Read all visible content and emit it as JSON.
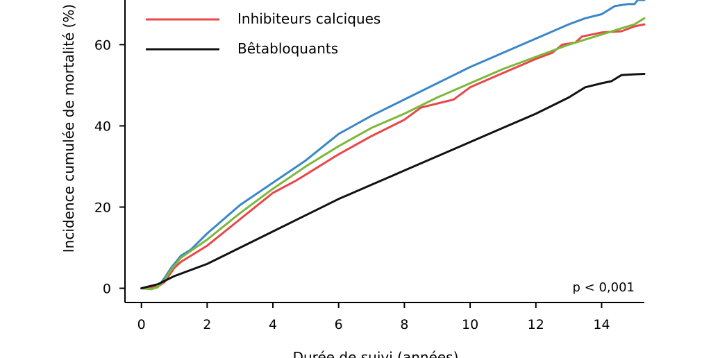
{
  "chart_data": {
    "type": "line",
    "xlabel": "Durée de suivi (années)",
    "ylabel": "Incidence cumulée de mortalité (%)",
    "xlim": [
      -0.5,
      15.3
    ],
    "ylim": [
      -3.5,
      71
    ],
    "xticks": [
      0,
      2,
      4,
      6,
      8,
      10,
      12,
      14
    ],
    "yticks": [
      0,
      20,
      40,
      60
    ],
    "annotation": "p < 0,001",
    "legend_placement": "top-left",
    "series": [
      {
        "name": "",
        "color": "#3a87c8",
        "points": [
          [
            0,
            0
          ],
          [
            0.3,
            -0.2
          ],
          [
            0.5,
            0.3
          ],
          [
            0.7,
            2.5
          ],
          [
            0.9,
            5
          ],
          [
            1.2,
            8
          ],
          [
            1.5,
            9.5
          ],
          [
            2,
            13.5
          ],
          [
            3,
            20.5
          ],
          [
            4,
            26
          ],
          [
            5,
            31.5
          ],
          [
            6,
            38
          ],
          [
            7,
            42.5
          ],
          [
            8,
            46.5
          ],
          [
            9,
            50.5
          ],
          [
            10,
            54.5
          ],
          [
            11,
            58
          ],
          [
            12,
            61.5
          ],
          [
            13,
            65
          ],
          [
            13.5,
            66.5
          ],
          [
            14,
            67.5
          ],
          [
            14.4,
            69.5
          ],
          [
            14.8,
            70
          ],
          [
            15,
            70
          ],
          [
            15.1,
            71
          ],
          [
            15.3,
            71
          ]
        ]
      },
      {
        "name": "Inhibiteurs calciques",
        "color": "#e8464a",
        "points": [
          [
            0,
            0
          ],
          [
            0.3,
            0.2
          ],
          [
            0.5,
            0.4
          ],
          [
            0.7,
            1.5
          ],
          [
            1,
            5
          ],
          [
            1.2,
            6.5
          ],
          [
            2,
            10.5
          ],
          [
            3,
            17
          ],
          [
            4,
            23.5
          ],
          [
            4.7,
            26.5
          ],
          [
            5,
            28
          ],
          [
            6,
            33
          ],
          [
            7,
            37.5
          ],
          [
            8,
            41.5
          ],
          [
            8.5,
            44.5
          ],
          [
            9.5,
            46.5
          ],
          [
            10,
            49.5
          ],
          [
            11,
            53
          ],
          [
            12,
            56.5
          ],
          [
            12.5,
            58
          ],
          [
            12.8,
            60
          ],
          [
            13.2,
            60.5
          ],
          [
            13.4,
            62
          ],
          [
            14,
            63
          ],
          [
            14.6,
            63.3
          ],
          [
            15,
            64.5
          ],
          [
            15.3,
            65
          ]
        ]
      },
      {
        "name": "",
        "color": "#7cb83a",
        "points": [
          [
            0,
            0
          ],
          [
            0.3,
            -0.2
          ],
          [
            0.5,
            0.3
          ],
          [
            0.7,
            2
          ],
          [
            0.9,
            4.5
          ],
          [
            1.2,
            7.5
          ],
          [
            2,
            12
          ],
          [
            3,
            18.5
          ],
          [
            4,
            24.5
          ],
          [
            5,
            30
          ],
          [
            6,
            35
          ],
          [
            7,
            39.5
          ],
          [
            8,
            43
          ],
          [
            9,
            47
          ],
          [
            10,
            50.5
          ],
          [
            11,
            54
          ],
          [
            12,
            57
          ],
          [
            13,
            60
          ],
          [
            14,
            62.5
          ],
          [
            15,
            65
          ],
          [
            15.3,
            66.5
          ]
        ]
      },
      {
        "name": "Bêtabloquants",
        "color": "#111111",
        "points": [
          [
            0,
            0
          ],
          [
            0.5,
            1
          ],
          [
            1,
            3
          ],
          [
            2,
            6
          ],
          [
            3,
            10
          ],
          [
            4,
            14
          ],
          [
            5,
            18
          ],
          [
            6,
            22
          ],
          [
            7,
            25.5
          ],
          [
            8,
            29
          ],
          [
            9,
            32.5
          ],
          [
            10,
            36
          ],
          [
            11,
            39.5
          ],
          [
            12,
            43
          ],
          [
            13,
            47
          ],
          [
            13.5,
            49.5
          ],
          [
            14,
            50.5
          ],
          [
            14.3,
            51
          ],
          [
            14.6,
            52.5
          ],
          [
            15,
            52.7
          ],
          [
            15.3,
            52.8
          ]
        ]
      }
    ]
  }
}
